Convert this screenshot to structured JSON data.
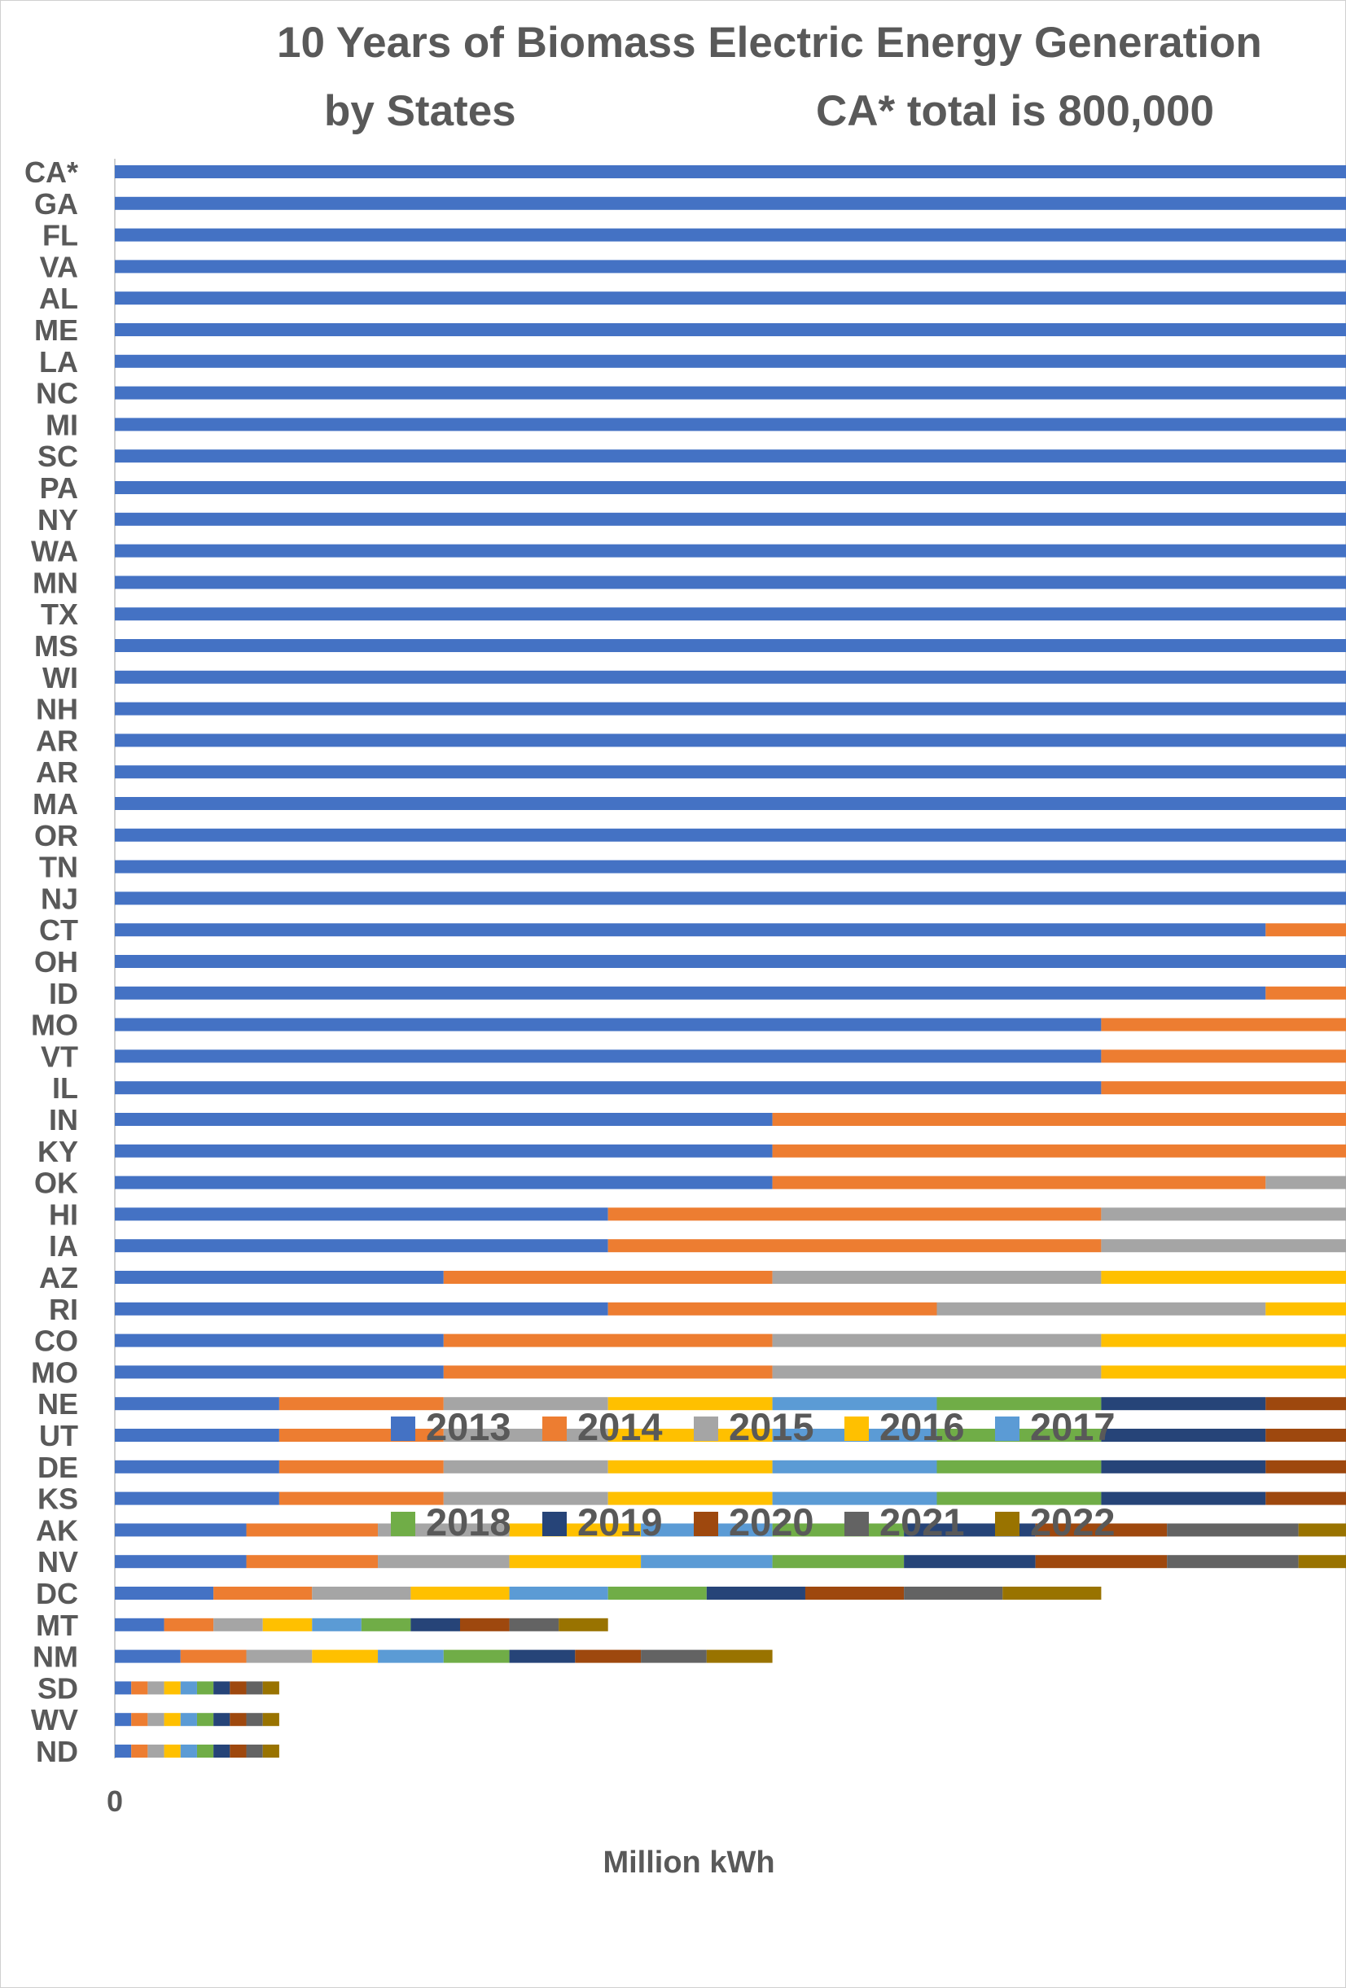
{
  "chart_data": {
    "type": "bar",
    "orientation": "horizontal",
    "stacked": true,
    "title": "10 Years of Biomass Electric Energy Generation",
    "subtitle_left": "by States",
    "subtitle_right": "CA* total is 800,000",
    "xlabel": "Million kWh",
    "ylabel": "",
    "xlim": [
      0,
      70000
    ],
    "x_ticks": [
      "0",
      "10000",
      "20000",
      "30000",
      "40000",
      "50000",
      "60000",
      "70000"
    ],
    "grid": "vertical",
    "legend_position": "inside lower-right",
    "categories": [
      "CA*",
      "GA",
      "FL",
      "VA",
      "AL",
      "ME",
      "LA",
      "NC",
      "MI",
      "SC",
      "PA",
      "NY",
      "WA",
      "MN",
      "TX",
      "MS",
      "WI",
      "NH",
      "AR",
      "AR",
      "MA",
      "OR",
      "TN",
      "NJ",
      "CT",
      "OH",
      "ID",
      "MO",
      "VT",
      "IL",
      "IN",
      "KY",
      "OK",
      "HI",
      "IA",
      "AZ",
      "RI",
      "CO",
      "MO",
      "NE",
      "UT",
      "DE",
      "KS",
      "AK",
      "NV",
      "DC",
      "MT",
      "NM",
      "SD",
      "WV",
      "ND"
    ],
    "series": [
      {
        "name": "2013",
        "color": "#4472C4",
        "values": [
          60800,
          6600,
          3900,
          4500,
          2900,
          2900,
          3900,
          2800,
          2600,
          2800,
          2300,
          2400,
          2400,
          1800,
          1600,
          1700,
          1500,
          1700,
          1300,
          1600,
          1200,
          1000,
          1000,
          1000,
          700,
          800,
          700,
          600,
          600,
          600,
          400,
          400,
          400,
          300,
          300,
          200,
          300,
          200,
          200,
          100,
          100,
          100,
          100,
          80,
          80,
          60,
          30,
          40,
          10,
          10,
          10
        ]
      },
      {
        "name": "2014",
        "color": "#ED7D31",
        "values": [
          9300,
          6900,
          4200,
          4800,
          3800,
          2800,
          3300,
          2800,
          2500,
          2700,
          2400,
          2400,
          2300,
          1900,
          1800,
          1800,
          1400,
          1600,
          1500,
          1500,
          1100,
          1100,
          900,
          900,
          700,
          800,
          600,
          500,
          500,
          500,
          400,
          400,
          300,
          300,
          300,
          200,
          200,
          200,
          200,
          100,
          100,
          100,
          100,
          80,
          80,
          60,
          30,
          40,
          10,
          10,
          10
        ]
      },
      {
        "name": "2015",
        "color": "#A5A5A5",
        "values": [
          0,
          6500,
          4700,
          4900,
          4200,
          3300,
          3100,
          2700,
          2600,
          2500,
          2300,
          2400,
          2300,
          1900,
          1800,
          1400,
          1500,
          1600,
          1600,
          1500,
          1200,
          1100,
          1000,
          1000,
          800,
          800,
          600,
          500,
          500,
          500,
          400,
          400,
          300,
          300,
          300,
          200,
          200,
          200,
          200,
          100,
          100,
          100,
          100,
          80,
          80,
          60,
          30,
          40,
          10,
          10,
          10
        ]
      },
      {
        "name": "2016",
        "color": "#FFC000",
        "values": [
          0,
          5900,
          4600,
          4600,
          4000,
          3300,
          2900,
          2900,
          2600,
          2600,
          2400,
          2400,
          2200,
          1900,
          1900,
          1700,
          1500,
          1500,
          1700,
          1500,
          1200,
          1000,
          900,
          1000,
          800,
          700,
          600,
          500,
          500,
          500,
          400,
          400,
          300,
          300,
          300,
          200,
          200,
          200,
          200,
          100,
          100,
          100,
          100,
          80,
          80,
          60,
          30,
          40,
          10,
          10,
          10
        ]
      },
      {
        "name": "2017",
        "color": "#5B9BD5",
        "values": [
          0,
          5800,
          5100,
          5000,
          3800,
          3400,
          2700,
          2700,
          2700,
          2500,
          2400,
          2500,
          2300,
          1800,
          1900,
          1700,
          1400,
          1400,
          1600,
          1400,
          1100,
          1000,
          1000,
          1000,
          800,
          800,
          600,
          500,
          500,
          500,
          400,
          400,
          300,
          300,
          300,
          200,
          200,
          200,
          200,
          100,
          100,
          100,
          100,
          80,
          80,
          60,
          30,
          40,
          10,
          10,
          10
        ]
      },
      {
        "name": "2018",
        "color": "#70AD47",
        "values": [
          0,
          5900,
          5000,
          5100,
          4200,
          3400,
          2700,
          2600,
          2700,
          2500,
          2300,
          2300,
          2000,
          1800,
          1700,
          1600,
          1400,
          1400,
          1400,
          1300,
          1200,
          1000,
          900,
          1000,
          800,
          700,
          600,
          500,
          500,
          500,
          400,
          400,
          300,
          300,
          300,
          200,
          200,
          200,
          200,
          100,
          100,
          100,
          100,
          80,
          80,
          60,
          30,
          40,
          10,
          10,
          10
        ]
      },
      {
        "name": "2019",
        "color": "#264478",
        "values": [
          0,
          5900,
          5200,
          4400,
          3700,
          3300,
          2200,
          2200,
          2500,
          2300,
          2100,
          2000,
          2000,
          1600,
          1600,
          1400,
          1300,
          1300,
          1200,
          1300,
          1000,
          1000,
          900,
          800,
          800,
          700,
          500,
          500,
          400,
          500,
          400,
          400,
          300,
          300,
          300,
          200,
          200,
          200,
          200,
          100,
          100,
          100,
          100,
          80,
          80,
          60,
          30,
          40,
          10,
          10,
          10
        ]
      },
      {
        "name": "2020",
        "color": "#9E480E",
        "values": [
          0,
          5700,
          5900,
          4000,
          3400,
          3300,
          2200,
          2200,
          2400,
          2200,
          2100,
          2000,
          2000,
          1500,
          1200,
          1400,
          1300,
          1200,
          900,
          900,
          1000,
          900,
          700,
          700,
          700,
          700,
          500,
          400,
          400,
          400,
          300,
          300,
          300,
          300,
          300,
          200,
          200,
          200,
          200,
          100,
          100,
          100,
          100,
          80,
          80,
          60,
          30,
          40,
          10,
          10,
          10
        ]
      },
      {
        "name": "2021",
        "color": "#636363",
        "values": [
          0,
          5400,
          5900,
          4100,
          3600,
          3300,
          1800,
          2100,
          2100,
          2300,
          2000,
          1800,
          1900,
          1500,
          1300,
          1300,
          1300,
          1100,
          1000,
          900,
          1000,
          900,
          700,
          700,
          700,
          700,
          500,
          400,
          400,
          400,
          300,
          300,
          300,
          300,
          300,
          200,
          200,
          200,
          200,
          100,
          100,
          100,
          100,
          80,
          80,
          60,
          30,
          40,
          10,
          10,
          10
        ]
      },
      {
        "name": "2022",
        "color": "#997300",
        "values": [
          0,
          5300,
          5700,
          3900,
          3600,
          3200,
          1800,
          2100,
          1800,
          2300,
          1900,
          1600,
          1800,
          1300,
          1200,
          1500,
          1300,
          1200,
          800,
          800,
          1000,
          900,
          600,
          600,
          600,
          500,
          500,
          400,
          400,
          400,
          300,
          300,
          300,
          300,
          300,
          200,
          200,
          200,
          200,
          100,
          100,
          100,
          100,
          80,
          80,
          60,
          30,
          40,
          10,
          10,
          10
        ]
      }
    ]
  }
}
